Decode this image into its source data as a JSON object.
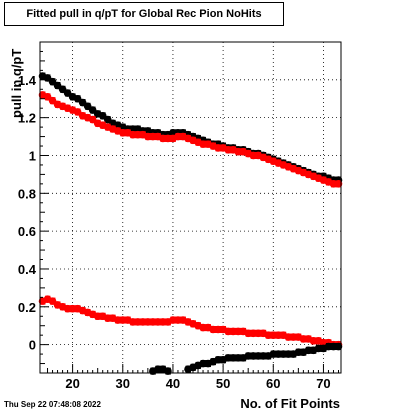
{
  "title": "Fitted pull in q/pT for Global Rec Pion NoHits",
  "timestamp": "Thu Sep 22 07:48:08 2022",
  "chart_data": {
    "type": "scatter",
    "xlabel": "No. of Fit Points",
    "ylabel": "pull in q/pT",
    "xlim": [
      13.5,
      73.5
    ],
    "ylim": [
      -0.15,
      1.6
    ],
    "x_ticks": [
      20,
      30,
      40,
      50,
      60,
      70
    ],
    "y_ticks": [
      0,
      0.2,
      0.4,
      0.6,
      0.8,
      1,
      1.2,
      1.4
    ],
    "grid": true,
    "series": [
      {
        "color": "#000000",
        "points": [
          [
            14,
            1.42
          ],
          [
            15,
            1.41
          ],
          [
            16,
            1.39
          ],
          [
            17,
            1.37
          ],
          [
            18,
            1.35
          ],
          [
            19,
            1.33
          ],
          [
            20,
            1.31
          ],
          [
            21,
            1.3
          ],
          [
            22,
            1.28
          ],
          [
            23,
            1.26
          ],
          [
            24,
            1.24
          ],
          [
            25,
            1.22
          ],
          [
            26,
            1.21
          ],
          [
            27,
            1.19
          ],
          [
            28,
            1.17
          ],
          [
            29,
            1.16
          ],
          [
            30,
            1.15
          ],
          [
            31,
            1.14
          ],
          [
            32,
            1.14
          ],
          [
            33,
            1.14
          ],
          [
            34,
            1.13
          ],
          [
            35,
            1.13
          ],
          [
            36,
            1.12
          ],
          [
            37,
            1.12
          ],
          [
            38,
            1.11
          ],
          [
            39,
            1.11
          ],
          [
            40,
            1.12
          ],
          [
            41,
            1.12
          ],
          [
            42,
            1.12
          ],
          [
            43,
            1.11
          ],
          [
            44,
            1.1
          ],
          [
            45,
            1.09
          ],
          [
            46,
            1.08
          ],
          [
            47,
            1.07
          ],
          [
            48,
            1.06
          ],
          [
            49,
            1.06
          ],
          [
            50,
            1.05
          ],
          [
            51,
            1.04
          ],
          [
            52,
            1.04
          ],
          [
            53,
            1.03
          ],
          [
            54,
            1.03
          ],
          [
            55,
            1.02
          ],
          [
            56,
            1.01
          ],
          [
            57,
            1.01
          ],
          [
            58,
            1.0
          ],
          [
            59,
            0.99
          ],
          [
            60,
            0.98
          ],
          [
            61,
            0.97
          ],
          [
            62,
            0.96
          ],
          [
            63,
            0.95
          ],
          [
            64,
            0.94
          ],
          [
            65,
            0.93
          ],
          [
            66,
            0.92
          ],
          [
            67,
            0.91
          ],
          [
            68,
            0.9
          ],
          [
            69,
            0.89
          ],
          [
            70,
            0.89
          ],
          [
            71,
            0.88
          ],
          [
            72,
            0.87
          ],
          [
            73,
            0.87
          ]
        ]
      },
      {
        "color": "#ff0000",
        "points": [
          [
            14,
            1.32
          ],
          [
            15,
            1.31
          ],
          [
            16,
            1.29
          ],
          [
            17,
            1.27
          ],
          [
            18,
            1.26
          ],
          [
            19,
            1.25
          ],
          [
            20,
            1.24
          ],
          [
            21,
            1.23
          ],
          [
            22,
            1.21
          ],
          [
            23,
            1.2
          ],
          [
            24,
            1.19
          ],
          [
            25,
            1.17
          ],
          [
            26,
            1.16
          ],
          [
            27,
            1.15
          ],
          [
            28,
            1.14
          ],
          [
            29,
            1.13
          ],
          [
            30,
            1.12
          ],
          [
            31,
            1.12
          ],
          [
            32,
            1.11
          ],
          [
            33,
            1.11
          ],
          [
            34,
            1.11
          ],
          [
            35,
            1.1
          ],
          [
            36,
            1.1
          ],
          [
            37,
            1.1
          ],
          [
            38,
            1.09
          ],
          [
            39,
            1.09
          ],
          [
            40,
            1.09
          ],
          [
            41,
            1.1
          ],
          [
            42,
            1.1
          ],
          [
            43,
            1.09
          ],
          [
            44,
            1.08
          ],
          [
            45,
            1.07
          ],
          [
            46,
            1.06
          ],
          [
            47,
            1.06
          ],
          [
            48,
            1.05
          ],
          [
            49,
            1.04
          ],
          [
            50,
            1.04
          ],
          [
            51,
            1.03
          ],
          [
            52,
            1.03
          ],
          [
            53,
            1.02
          ],
          [
            54,
            1.02
          ],
          [
            55,
            1.01
          ],
          [
            56,
            1.0
          ],
          [
            57,
            1.0
          ],
          [
            58,
            0.99
          ],
          [
            59,
            0.98
          ],
          [
            60,
            0.97
          ],
          [
            61,
            0.96
          ],
          [
            62,
            0.95
          ],
          [
            63,
            0.94
          ],
          [
            64,
            0.93
          ],
          [
            65,
            0.92
          ],
          [
            66,
            0.91
          ],
          [
            67,
            0.9
          ],
          [
            68,
            0.89
          ],
          [
            69,
            0.88
          ],
          [
            70,
            0.87
          ],
          [
            71,
            0.86
          ],
          [
            72,
            0.85
          ],
          [
            73,
            0.85
          ]
        ]
      },
      {
        "color": "#ff0000",
        "points": [
          [
            14,
            0.23
          ],
          [
            15,
            0.24
          ],
          [
            16,
            0.23
          ],
          [
            17,
            0.21
          ],
          [
            18,
            0.2
          ],
          [
            19,
            0.19
          ],
          [
            20,
            0.19
          ],
          [
            21,
            0.19
          ],
          [
            22,
            0.18
          ],
          [
            23,
            0.17
          ],
          [
            24,
            0.16
          ],
          [
            25,
            0.15
          ],
          [
            26,
            0.15
          ],
          [
            27,
            0.14
          ],
          [
            28,
            0.14
          ],
          [
            29,
            0.13
          ],
          [
            30,
            0.13
          ],
          [
            31,
            0.13
          ],
          [
            32,
            0.12
          ],
          [
            33,
            0.12
          ],
          [
            34,
            0.12
          ],
          [
            35,
            0.12
          ],
          [
            36,
            0.12
          ],
          [
            37,
            0.12
          ],
          [
            38,
            0.12
          ],
          [
            39,
            0.12
          ],
          [
            40,
            0.13
          ],
          [
            41,
            0.13
          ],
          [
            42,
            0.13
          ],
          [
            43,
            0.12
          ],
          [
            44,
            0.11
          ],
          [
            45,
            0.1
          ],
          [
            46,
            0.09
          ],
          [
            47,
            0.09
          ],
          [
            48,
            0.08
          ],
          [
            49,
            0.08
          ],
          [
            50,
            0.08
          ],
          [
            51,
            0.07
          ],
          [
            52,
            0.07
          ],
          [
            53,
            0.07
          ],
          [
            54,
            0.07
          ],
          [
            55,
            0.06
          ],
          [
            56,
            0.06
          ],
          [
            57,
            0.06
          ],
          [
            58,
            0.06
          ],
          [
            59,
            0.05
          ],
          [
            60,
            0.05
          ],
          [
            61,
            0.05
          ],
          [
            62,
            0.05
          ],
          [
            63,
            0.04
          ],
          [
            64,
            0.04
          ],
          [
            65,
            0.04
          ],
          [
            66,
            0.03
          ],
          [
            67,
            0.03
          ],
          [
            68,
            0.02
          ],
          [
            69,
            0.02
          ],
          [
            70,
            0.01
          ],
          [
            71,
            0.01
          ],
          [
            72,
            0.0
          ],
          [
            73,
            0.0
          ]
        ]
      },
      {
        "color": "#000000",
        "points": [
          [
            36,
            -0.14
          ],
          [
            37,
            -0.13
          ],
          [
            38,
            -0.13
          ],
          [
            39,
            -0.14
          ],
          [
            43,
            -0.13
          ],
          [
            44,
            -0.12
          ],
          [
            45,
            -0.11
          ],
          [
            46,
            -0.1
          ],
          [
            47,
            -0.1
          ],
          [
            48,
            -0.09
          ],
          [
            49,
            -0.08
          ],
          [
            50,
            -0.08
          ],
          [
            51,
            -0.07
          ],
          [
            52,
            -0.07
          ],
          [
            53,
            -0.07
          ],
          [
            54,
            -0.07
          ],
          [
            55,
            -0.06
          ],
          [
            56,
            -0.06
          ],
          [
            57,
            -0.06
          ],
          [
            58,
            -0.06
          ],
          [
            59,
            -0.06
          ],
          [
            60,
            -0.05
          ],
          [
            61,
            -0.05
          ],
          [
            62,
            -0.05
          ],
          [
            63,
            -0.05
          ],
          [
            64,
            -0.05
          ],
          [
            65,
            -0.04
          ],
          [
            66,
            -0.04
          ],
          [
            67,
            -0.03
          ],
          [
            68,
            -0.03
          ],
          [
            69,
            -0.02
          ],
          [
            70,
            -0.02
          ],
          [
            71,
            -0.01
          ],
          [
            72,
            -0.01
          ],
          [
            73,
            -0.01
          ]
        ]
      }
    ]
  }
}
